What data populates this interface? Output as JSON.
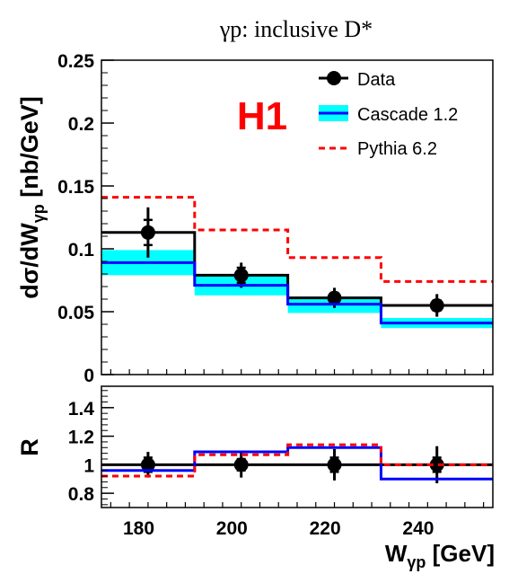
{
  "chart_data": [
    {
      "type": "line",
      "title": "γp:  inclusive D*",
      "logo": "H1",
      "ylabel": "dσ/dW_γp [nb/GeV]",
      "xlabel": "",
      "xlim": [
        172,
        256
      ],
      "ylim": [
        0,
        0.25
      ],
      "x_ticks": [
        180,
        200,
        220,
        240
      ],
      "y_ticks": [
        0,
        0.05,
        0.1,
        0.15,
        0.2,
        0.25
      ],
      "y_tick_labels": [
        "0",
        "0.05",
        "0.1",
        "0.15",
        "0.2",
        "0.25"
      ],
      "grid": false,
      "legend_position": "top-right",
      "bins": [
        [
          172,
          192
        ],
        [
          192,
          212
        ],
        [
          212,
          232
        ],
        [
          232,
          256
        ]
      ],
      "series": [
        {
          "name": "Data",
          "style": "histogram-with-points",
          "values": [
            0.113,
            0.079,
            0.061,
            0.055
          ],
          "points_x": [
            182,
            202,
            222,
            244
          ],
          "err_stat": [
            0.01,
            0.006,
            0.004,
            0.004
          ],
          "err_total": [
            0.02,
            0.01,
            0.008,
            0.009
          ]
        },
        {
          "name": "Cascade 1.2",
          "style": "histogram-band",
          "values": [
            0.089,
            0.071,
            0.056,
            0.041
          ],
          "band_low": [
            0.079,
            0.063,
            0.049,
            0.037
          ],
          "band_high": [
            0.099,
            0.079,
            0.062,
            0.045
          ]
        },
        {
          "name": "Pythia 6.2",
          "style": "histogram-dashed",
          "values": [
            0.141,
            0.115,
            0.093,
            0.074
          ]
        }
      ],
      "colors": {
        "data": "#000000",
        "cascade": "#0000ff",
        "band": "#00ffff",
        "pythia": "#ff0000",
        "logo": "#ff0000"
      }
    },
    {
      "type": "line",
      "ylabel": "R",
      "xlabel": "W_γp [GeV]",
      "xlim": [
        172,
        256
      ],
      "ylim": [
        0.7,
        1.55
      ],
      "x_ticks": [
        180,
        200,
        220,
        240
      ],
      "y_ticks": [
        0.8,
        1,
        1.2,
        1.4
      ],
      "y_tick_labels": [
        "0.8",
        "1",
        "1.2",
        "1.4"
      ],
      "grid": false,
      "bins": [
        [
          172,
          192
        ],
        [
          192,
          212
        ],
        [
          212,
          232
        ],
        [
          232,
          256
        ]
      ],
      "series": [
        {
          "name": "Data",
          "style": "histogram-with-points",
          "values": [
            1.0,
            1.0,
            1.0,
            1.0
          ],
          "points_x": [
            182,
            202,
            222,
            244
          ],
          "err_stat": [
            0.05,
            0.04,
            0.05,
            0.05
          ],
          "err_total": [
            0.09,
            0.09,
            0.11,
            0.13
          ]
        },
        {
          "name": "Cascade 1.2",
          "style": "histogram",
          "values": [
            0.96,
            1.09,
            1.12,
            0.9
          ]
        },
        {
          "name": "Pythia 6.2",
          "style": "histogram-dashed",
          "values": [
            0.92,
            1.07,
            1.14,
            1.0
          ]
        }
      ]
    }
  ]
}
